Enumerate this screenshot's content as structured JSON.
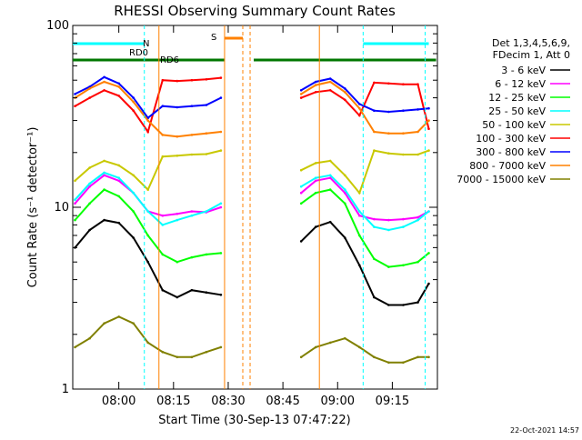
{
  "chart_data": {
    "type": "line",
    "title": "RHESSI Observing Summary Count Rates",
    "xlabel": "Start Time (30-Sep-13 07:47:22)",
    "ylabel": "Count Rate (s⁻¹ detector⁻¹)",
    "y_scale": "log",
    "ylim": [
      1,
      100
    ],
    "xlim": [
      "07:47:22",
      "09:27:22"
    ],
    "x_ticks": [
      "08:00",
      "08:15",
      "08:30",
      "08:45",
      "09:00",
      "09:15"
    ],
    "y_ticks": [
      "1",
      "10",
      "100"
    ],
    "legend_header": [
      "Det 1,3,4,5,6,9,",
      "FDecim 1, Att 0"
    ],
    "series": [
      {
        "name": "3 - 6 keV",
        "color": "#000000",
        "x": [
          "07:48",
          "07:52",
          "07:56",
          "08:00",
          "08:04",
          "08:08",
          "08:12",
          "08:16",
          "08:20",
          "08:24",
          "08:28",
          "08:50",
          "08:54",
          "08:58",
          "09:02",
          "09:06",
          "09:10",
          "09:14",
          "09:18",
          "09:22",
          "09:25"
        ],
        "y": [
          6.0,
          7.5,
          8.5,
          8.2,
          6.8,
          5.0,
          3.5,
          3.2,
          3.5,
          3.4,
          3.3,
          6.5,
          7.8,
          8.3,
          6.8,
          4.8,
          3.2,
          2.9,
          2.9,
          3.0,
          3.8
        ]
      },
      {
        "name": "6 - 12 keV",
        "color": "#ff00ff",
        "x": [
          "07:48",
          "07:52",
          "07:56",
          "08:00",
          "08:04",
          "08:08",
          "08:12",
          "08:16",
          "08:20",
          "08:24",
          "08:28",
          "08:50",
          "08:54",
          "08:58",
          "09:02",
          "09:06",
          "09:10",
          "09:14",
          "09:18",
          "09:22",
          "09:25"
        ],
        "y": [
          10.5,
          13.0,
          15.0,
          14.0,
          12.0,
          9.5,
          9.0,
          9.2,
          9.5,
          9.4,
          10.0,
          12.0,
          14.0,
          14.5,
          12.0,
          9.0,
          8.6,
          8.5,
          8.6,
          8.8,
          9.5
        ]
      },
      {
        "name": "12 - 25 keV",
        "color": "#00ff00",
        "x": [
          "07:48",
          "07:52",
          "07:56",
          "08:00",
          "08:04",
          "08:08",
          "08:12",
          "08:16",
          "08:20",
          "08:24",
          "08:28",
          "08:50",
          "08:54",
          "08:58",
          "09:02",
          "09:06",
          "09:10",
          "09:14",
          "09:18",
          "09:22",
          "09:25"
        ],
        "y": [
          8.5,
          10.5,
          12.5,
          11.5,
          9.5,
          7.0,
          5.5,
          5.0,
          5.3,
          5.5,
          5.6,
          10.5,
          12.0,
          12.5,
          10.5,
          7.0,
          5.2,
          4.7,
          4.8,
          5.0,
          5.6
        ]
      },
      {
        "name": "25 - 50 keV",
        "color": "#00ffff",
        "x": [
          "07:48",
          "07:52",
          "07:56",
          "08:00",
          "08:04",
          "08:08",
          "08:12",
          "08:16",
          "08:20",
          "08:24",
          "08:28",
          "08:50",
          "08:54",
          "08:58",
          "09:02",
          "09:06",
          "09:10",
          "09:14",
          "09:18",
          "09:22",
          "09:25"
        ],
        "y": [
          11.0,
          13.5,
          15.5,
          14.5,
          12.0,
          9.5,
          8.0,
          8.5,
          9.0,
          9.5,
          10.5,
          13.0,
          14.5,
          15.0,
          12.5,
          9.5,
          7.8,
          7.5,
          7.8,
          8.5,
          9.5
        ]
      },
      {
        "name": "50 - 100 keV",
        "color": "#c8c800",
        "x": [
          "07:48",
          "07:52",
          "07:56",
          "08:00",
          "08:04",
          "08:08",
          "08:12",
          "08:16",
          "08:20",
          "08:24",
          "08:28",
          "08:50",
          "08:54",
          "08:58",
          "09:02",
          "09:06",
          "09:10",
          "09:14",
          "09:18",
          "09:22",
          "09:25"
        ],
        "y": [
          14.0,
          16.5,
          18.0,
          17.0,
          15.0,
          12.5,
          19.0,
          19.2,
          19.5,
          19.6,
          20.5,
          16.0,
          17.5,
          18.0,
          15.0,
          12.0,
          20.5,
          19.8,
          19.5,
          19.5,
          20.5
        ]
      },
      {
        "name": "100 - 300 keV",
        "color": "#ff0000",
        "x": [
          "07:48",
          "07:52",
          "07:56",
          "08:00",
          "08:04",
          "08:08",
          "08:12",
          "08:16",
          "08:20",
          "08:24",
          "08:28",
          "08:50",
          "08:54",
          "08:58",
          "09:02",
          "09:06",
          "09:10",
          "09:14",
          "09:18",
          "09:22",
          "09:25"
        ],
        "y": [
          36.0,
          40.0,
          44.0,
          41.0,
          34.0,
          26.0,
          50.0,
          49.5,
          50.0,
          50.5,
          51.5,
          40.0,
          43.0,
          44.0,
          39.0,
          32.0,
          48.5,
          48.0,
          47.5,
          47.5,
          27.0
        ]
      },
      {
        "name": "300 - 800 keV",
        "color": "#0000ff",
        "x": [
          "07:48",
          "07:52",
          "07:56",
          "08:00",
          "08:04",
          "08:08",
          "08:12",
          "08:16",
          "08:20",
          "08:24",
          "08:28",
          "08:50",
          "08:54",
          "08:58",
          "09:02",
          "09:06",
          "09:10",
          "09:14",
          "09:18",
          "09:22",
          "09:25"
        ],
        "y": [
          42.0,
          46.0,
          52.0,
          48.0,
          40.0,
          31.0,
          36.0,
          35.5,
          36.0,
          36.5,
          40.0,
          44.0,
          49.0,
          51.0,
          45.0,
          37.0,
          34.0,
          33.5,
          34.0,
          34.5,
          35.0
        ]
      },
      {
        "name": "800 - 7000 keV",
        "color": "#ff8000",
        "x": [
          "07:48",
          "07:52",
          "07:56",
          "08:00",
          "08:04",
          "08:08",
          "08:12",
          "08:16",
          "08:20",
          "08:24",
          "08:28",
          "08:50",
          "08:54",
          "08:58",
          "09:02",
          "09:06",
          "09:10",
          "09:14",
          "09:18",
          "09:22",
          "09:25"
        ],
        "y": [
          40.0,
          45.0,
          49.0,
          46.0,
          38.0,
          30.0,
          25.0,
          24.5,
          25.0,
          25.5,
          26.0,
          42.0,
          47.0,
          49.0,
          43.0,
          35.0,
          26.0,
          25.5,
          25.5,
          26.0,
          30.0
        ]
      },
      {
        "name": "7000 - 15000 keV",
        "color": "#808000",
        "x": [
          "07:48",
          "07:52",
          "07:56",
          "08:00",
          "08:04",
          "08:08",
          "08:12",
          "08:16",
          "08:20",
          "08:24",
          "08:28",
          "08:50",
          "08:54",
          "08:58",
          "09:02",
          "09:06",
          "09:10",
          "09:14",
          "09:18",
          "09:22",
          "09:25"
        ],
        "y": [
          1.7,
          1.9,
          2.3,
          2.5,
          2.3,
          1.8,
          1.6,
          1.5,
          1.5,
          1.6,
          1.7,
          1.5,
          1.7,
          1.8,
          1.9,
          1.7,
          1.5,
          1.4,
          1.4,
          1.5,
          1.5
        ]
      }
    ],
    "annotations": [
      "N",
      "RD0",
      "RD6",
      "S"
    ],
    "legend_position": "right",
    "grid": false
  },
  "footer": {
    "timestamp": "22-Oct-2021 14:57"
  }
}
